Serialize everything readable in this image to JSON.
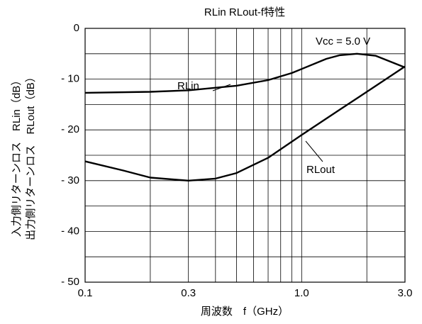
{
  "chart_data": {
    "type": "line",
    "title": "RLin RLout-f特性",
    "x_label": "周波数　f（GHz）",
    "y_labels": [
      "入力側リターンロス　RLin（dB）",
      "出力側リターンロス　RLout（dB）"
    ],
    "annotation": "Vcc = 5.0 V",
    "log_x": true,
    "grid": true,
    "xlim": [
      0.1,
      3.0
    ],
    "xticks": [
      0.1,
      0.3,
      {
        "value": 1,
        "label": "1.0"
      },
      {
        "value": 3,
        "label": "3.0"
      }
    ],
    "xminor": [
      0.2,
      0.4,
      0.5,
      0.6,
      0.7,
      0.8,
      0.9,
      2
    ],
    "ylim": [
      -50,
      0
    ],
    "yticks": [
      0,
      {
        "value": -10,
        "label": "- 10"
      },
      {
        "value": -20,
        "label": "- 20"
      },
      {
        "value": -30,
        "label": "- 30"
      },
      {
        "value": -40,
        "label": "- 40"
      },
      {
        "value": -50,
        "label": "- 50"
      }
    ],
    "yminor": [
      -5,
      -15,
      -25,
      -35,
      -45
    ],
    "series": [
      {
        "name": "RLin",
        "color": "#000000",
        "x": [
          0.1,
          0.2,
          0.3,
          0.5,
          0.7,
          0.9,
          1.0,
          1.3,
          1.5,
          1.8,
          2.2,
          3.0
        ],
        "values": [
          -12.7,
          -12.5,
          -12.2,
          -11.3,
          -10.2,
          -8.8,
          -8,
          -6,
          -5.3,
          -5,
          -5.4,
          -7.7
        ]
      },
      {
        "name": "RLout",
        "color": "#000000",
        "x": [
          0.1,
          0.15,
          0.2,
          0.3,
          0.4,
          0.5,
          0.7,
          1.0,
          1.5,
          2.0,
          3.0
        ],
        "values": [
          -26.2,
          -28,
          -29.4,
          -30,
          -29.6,
          -28.5,
          -25.5,
          -21,
          -16,
          -12.5,
          -7.5
        ]
      }
    ]
  }
}
